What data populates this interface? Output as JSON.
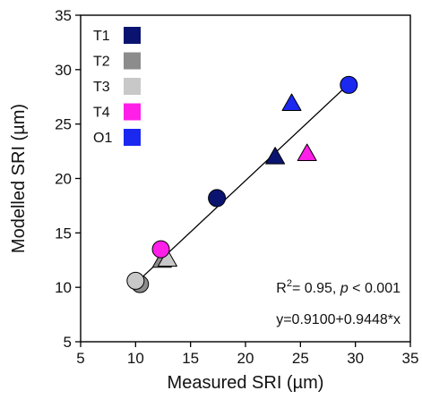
{
  "chart_data": {
    "type": "scatter",
    "xlabel": "Measured SRI (µm)",
    "ylabel": "Modelled SRI (µm)",
    "xlim": [
      5,
      35
    ],
    "ylim": [
      5,
      35
    ],
    "xticks": [
      5,
      10,
      15,
      20,
      25,
      30,
      35
    ],
    "yticks": [
      5,
      10,
      15,
      20,
      25,
      30,
      35
    ],
    "grid": false,
    "legend_position": "top-left",
    "series": [
      {
        "name": "T1",
        "color": "#0a1470",
        "points": [
          {
            "x": 17.4,
            "y": 18.2,
            "marker": "circle"
          },
          {
            "x": 22.7,
            "y": 22.0,
            "marker": "triangle"
          }
        ]
      },
      {
        "name": "T2",
        "color": "#8c8c8c",
        "points": [
          {
            "x": 10.4,
            "y": 10.3,
            "marker": "circle"
          },
          {
            "x": 12.4,
            "y": 12.5,
            "marker": "triangle"
          }
        ]
      },
      {
        "name": "T3",
        "color": "#c8c8c8",
        "points": [
          {
            "x": 10.0,
            "y": 10.6,
            "marker": "circle"
          },
          {
            "x": 12.9,
            "y": 12.6,
            "marker": "triangle"
          }
        ]
      },
      {
        "name": "T4",
        "color": "#ff1fe8",
        "points": [
          {
            "x": 12.3,
            "y": 13.5,
            "marker": "circle"
          },
          {
            "x": 25.6,
            "y": 22.3,
            "marker": "triangle"
          }
        ]
      },
      {
        "name": "O1",
        "color": "#1a28f0",
        "points": [
          {
            "x": 29.4,
            "y": 28.6,
            "marker": "circle"
          },
          {
            "x": 24.2,
            "y": 26.9,
            "marker": "triangle"
          }
        ]
      }
    ],
    "fit_line": {
      "intercept": 0.91,
      "slope": 0.9448,
      "x_range": [
        9.9,
        29.4
      ]
    },
    "annotations": {
      "r2_prefix": "R",
      "r2_sup": "2",
      "r2_mid": "= 0.95, ",
      "p_symbol": "p",
      "p_rest": " < 0.001",
      "equation": "y=0.9100+0.9448*x"
    }
  }
}
